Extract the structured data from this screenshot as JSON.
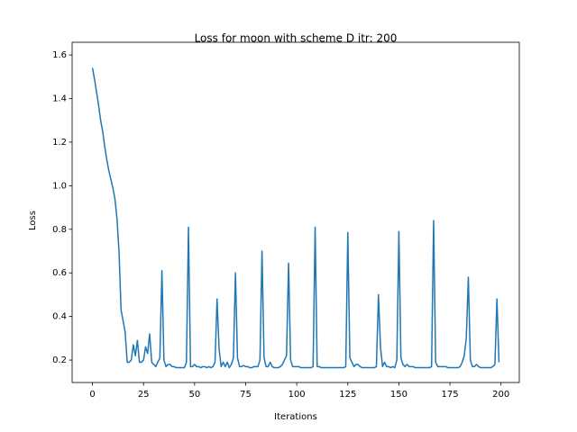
{
  "chart_data": {
    "type": "line",
    "title": "Loss for moon with scheme D itr: 200",
    "x_label": "Iterations",
    "y_label": "Loss",
    "color": "#1f77b4",
    "x": [
      0,
      1,
      2,
      3,
      4,
      5,
      6,
      7,
      8,
      9,
      10,
      11,
      12,
      13,
      14,
      15,
      16,
      17,
      18,
      19,
      20,
      21,
      22,
      23,
      24,
      25,
      26,
      27,
      28,
      29,
      30,
      31,
      32,
      33,
      34,
      35,
      36,
      37,
      38,
      39,
      40,
      41,
      42,
      43,
      44,
      45,
      46,
      47,
      48,
      49,
      50,
      51,
      52,
      53,
      54,
      55,
      56,
      57,
      58,
      59,
      60,
      61,
      62,
      63,
      64,
      65,
      66,
      67,
      68,
      69,
      70,
      71,
      72,
      73,
      74,
      75,
      76,
      77,
      78,
      79,
      80,
      81,
      82,
      83,
      84,
      85,
      86,
      87,
      88,
      89,
      90,
      91,
      92,
      93,
      94,
      95,
      96,
      97,
      98,
      99,
      100,
      101,
      102,
      103,
      104,
      105,
      106,
      107,
      108,
      109,
      110,
      111,
      112,
      113,
      114,
      115,
      116,
      117,
      118,
      119,
      120,
      121,
      122,
      123,
      124,
      125,
      126,
      127,
      128,
      129,
      130,
      131,
      132,
      133,
      134,
      135,
      136,
      137,
      138,
      139,
      140,
      141,
      142,
      143,
      144,
      145,
      146,
      147,
      148,
      149,
      150,
      151,
      152,
      153,
      154,
      155,
      156,
      157,
      158,
      159,
      160,
      161,
      162,
      163,
      164,
      165,
      166,
      167,
      168,
      169,
      170,
      171,
      172,
      173,
      174,
      175,
      176,
      177,
      178,
      179,
      180,
      181,
      182,
      183,
      184,
      185,
      186,
      187,
      188,
      189,
      190,
      191,
      192,
      193,
      194,
      195,
      196,
      197,
      198,
      199
    ],
    "values": [
      1.54,
      1.49,
      1.43,
      1.37,
      1.3,
      1.25,
      1.18,
      1.12,
      1.07,
      1.03,
      0.99,
      0.94,
      0.85,
      0.7,
      0.43,
      0.38,
      0.33,
      0.19,
      0.19,
      0.2,
      0.27,
      0.22,
      0.29,
      0.19,
      0.19,
      0.2,
      0.26,
      0.23,
      0.32,
      0.19,
      0.18,
      0.17,
      0.19,
      0.21,
      0.61,
      0.2,
      0.17,
      0.18,
      0.18,
      0.17,
      0.17,
      0.165,
      0.165,
      0.165,
      0.165,
      0.165,
      0.19,
      0.81,
      0.17,
      0.17,
      0.18,
      0.17,
      0.17,
      0.165,
      0.17,
      0.17,
      0.165,
      0.17,
      0.165,
      0.17,
      0.19,
      0.48,
      0.25,
      0.17,
      0.19,
      0.17,
      0.19,
      0.165,
      0.18,
      0.21,
      0.6,
      0.21,
      0.17,
      0.17,
      0.175,
      0.17,
      0.17,
      0.165,
      0.165,
      0.17,
      0.17,
      0.17,
      0.2,
      0.7,
      0.21,
      0.17,
      0.17,
      0.19,
      0.17,
      0.165,
      0.165,
      0.165,
      0.17,
      0.18,
      0.2,
      0.22,
      0.645,
      0.2,
      0.17,
      0.17,
      0.17,
      0.17,
      0.165,
      0.165,
      0.165,
      0.165,
      0.165,
      0.165,
      0.17,
      0.81,
      0.17,
      0.17,
      0.165,
      0.165,
      0.165,
      0.165,
      0.165,
      0.165,
      0.165,
      0.165,
      0.165,
      0.165,
      0.165,
      0.165,
      0.17,
      0.785,
      0.21,
      0.19,
      0.17,
      0.18,
      0.18,
      0.17,
      0.165,
      0.165,
      0.165,
      0.165,
      0.165,
      0.165,
      0.165,
      0.17,
      0.5,
      0.26,
      0.17,
      0.19,
      0.17,
      0.17,
      0.165,
      0.17,
      0.165,
      0.2,
      0.79,
      0.21,
      0.18,
      0.17,
      0.18,
      0.17,
      0.17,
      0.17,
      0.165,
      0.165,
      0.165,
      0.165,
      0.165,
      0.165,
      0.165,
      0.165,
      0.17,
      0.84,
      0.19,
      0.17,
      0.17,
      0.17,
      0.17,
      0.17,
      0.165,
      0.165,
      0.165,
      0.165,
      0.165,
      0.165,
      0.17,
      0.19,
      0.22,
      0.3,
      0.58,
      0.2,
      0.17,
      0.17,
      0.18,
      0.17,
      0.165,
      0.165,
      0.165,
      0.165,
      0.165,
      0.165,
      0.17,
      0.18,
      0.48,
      0.19
    ],
    "xlim": [
      -9.95,
      208.95
    ],
    "ylim": [
      0.097,
      1.658
    ],
    "xticks": [
      0,
      25,
      50,
      75,
      100,
      125,
      150,
      175,
      200
    ],
    "yticks": [
      0.2,
      0.4,
      0.6,
      0.8,
      {
        "value": 1,
        "label": "1.0"
      },
      1.2,
      1.4,
      1.6
    ],
    "grid": false
  }
}
